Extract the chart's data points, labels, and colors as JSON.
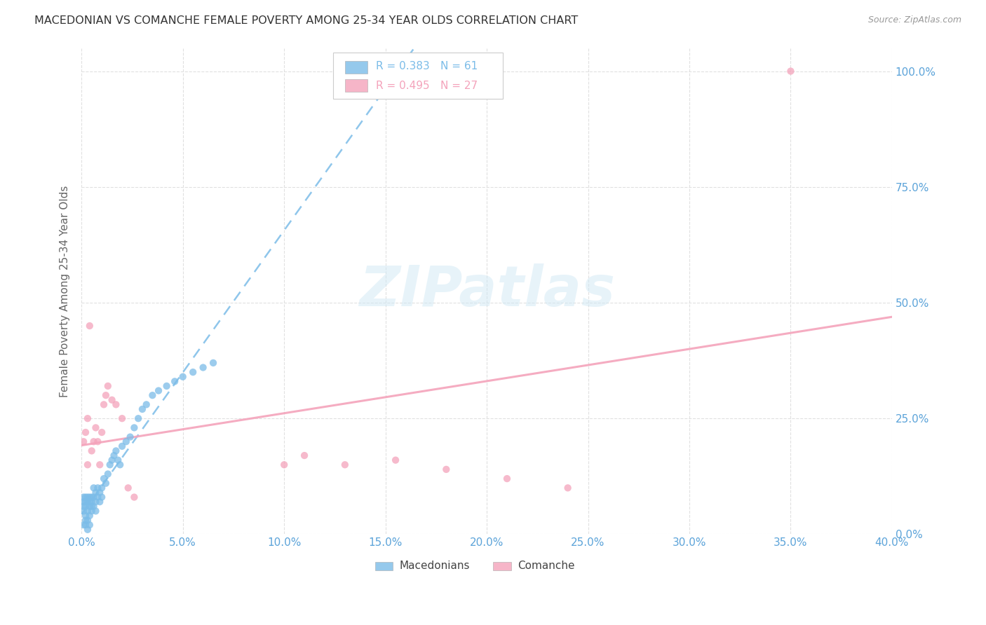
{
  "title": "MACEDONIAN VS COMANCHE FEMALE POVERTY AMONG 25-34 YEAR OLDS CORRELATION CHART",
  "source": "Source: ZipAtlas.com",
  "ylabel": "Female Poverty Among 25-34 Year Olds",
  "legend_macedonian": "Macedonians",
  "legend_comanche": "Comanche",
  "legend_r_mac": "R = 0.383",
  "legend_n_mac": "N = 61",
  "legend_r_com": "R = 0.495",
  "legend_n_com": "N = 27",
  "color_macedonian": "#7bbce8",
  "color_comanche": "#f4a3bb",
  "watermark": "ZIPatlas",
  "mac_x": [
    0.001,
    0.001,
    0.001,
    0.001,
    0.001,
    0.002,
    0.002,
    0.002,
    0.002,
    0.002,
    0.002,
    0.003,
    0.003,
    0.003,
    0.003,
    0.003,
    0.004,
    0.004,
    0.004,
    0.004,
    0.004,
    0.005,
    0.005,
    0.005,
    0.005,
    0.006,
    0.006,
    0.006,
    0.007,
    0.007,
    0.007,
    0.008,
    0.008,
    0.009,
    0.009,
    0.01,
    0.01,
    0.011,
    0.012,
    0.013,
    0.014,
    0.015,
    0.016,
    0.017,
    0.018,
    0.019,
    0.02,
    0.022,
    0.024,
    0.026,
    0.028,
    0.03,
    0.032,
    0.035,
    0.038,
    0.042,
    0.046,
    0.05,
    0.055,
    0.06,
    0.065
  ],
  "mac_y": [
    0.05,
    0.06,
    0.07,
    0.08,
    0.02,
    0.04,
    0.06,
    0.07,
    0.08,
    0.03,
    0.02,
    0.05,
    0.07,
    0.08,
    0.03,
    0.01,
    0.06,
    0.08,
    0.07,
    0.04,
    0.02,
    0.06,
    0.08,
    0.07,
    0.05,
    0.08,
    0.06,
    0.1,
    0.07,
    0.09,
    0.05,
    0.08,
    0.1,
    0.09,
    0.07,
    0.1,
    0.08,
    0.12,
    0.11,
    0.13,
    0.15,
    0.16,
    0.17,
    0.18,
    0.16,
    0.15,
    0.19,
    0.2,
    0.21,
    0.23,
    0.25,
    0.27,
    0.28,
    0.3,
    0.31,
    0.32,
    0.33,
    0.34,
    0.35,
    0.36,
    0.37
  ],
  "com_x": [
    0.001,
    0.002,
    0.003,
    0.003,
    0.004,
    0.005,
    0.006,
    0.007,
    0.008,
    0.009,
    0.01,
    0.011,
    0.012,
    0.013,
    0.015,
    0.017,
    0.02,
    0.023,
    0.026,
    0.1,
    0.11,
    0.13,
    0.155,
    0.18,
    0.21,
    0.24,
    0.35
  ],
  "com_y": [
    0.2,
    0.22,
    0.15,
    0.25,
    0.45,
    0.18,
    0.2,
    0.23,
    0.2,
    0.15,
    0.22,
    0.28,
    0.3,
    0.32,
    0.29,
    0.28,
    0.25,
    0.1,
    0.08,
    0.15,
    0.17,
    0.15,
    0.16,
    0.14,
    0.12,
    0.1,
    1.0
  ],
  "xlim": [
    0.0,
    0.4
  ],
  "ylim": [
    0.0,
    1.05
  ],
  "xticks": [
    0.0,
    0.05,
    0.1,
    0.15,
    0.2,
    0.25,
    0.3,
    0.35,
    0.4
  ],
  "xticklabels": [
    "0.0%",
    "5.0%",
    "10.0%",
    "15.0%",
    "20.0%",
    "25.0%",
    "30.0%",
    "35.0%",
    "40.0%"
  ],
  "yticks": [
    0.0,
    0.25,
    0.5,
    0.75,
    1.0
  ],
  "yticklabels": [
    "0.0%",
    "25.0%",
    "50.0%",
    "75.0%",
    "100.0%"
  ],
  "background_color": "#ffffff",
  "grid_color": "#e0e0e0",
  "tick_color": "#5ba3d9"
}
